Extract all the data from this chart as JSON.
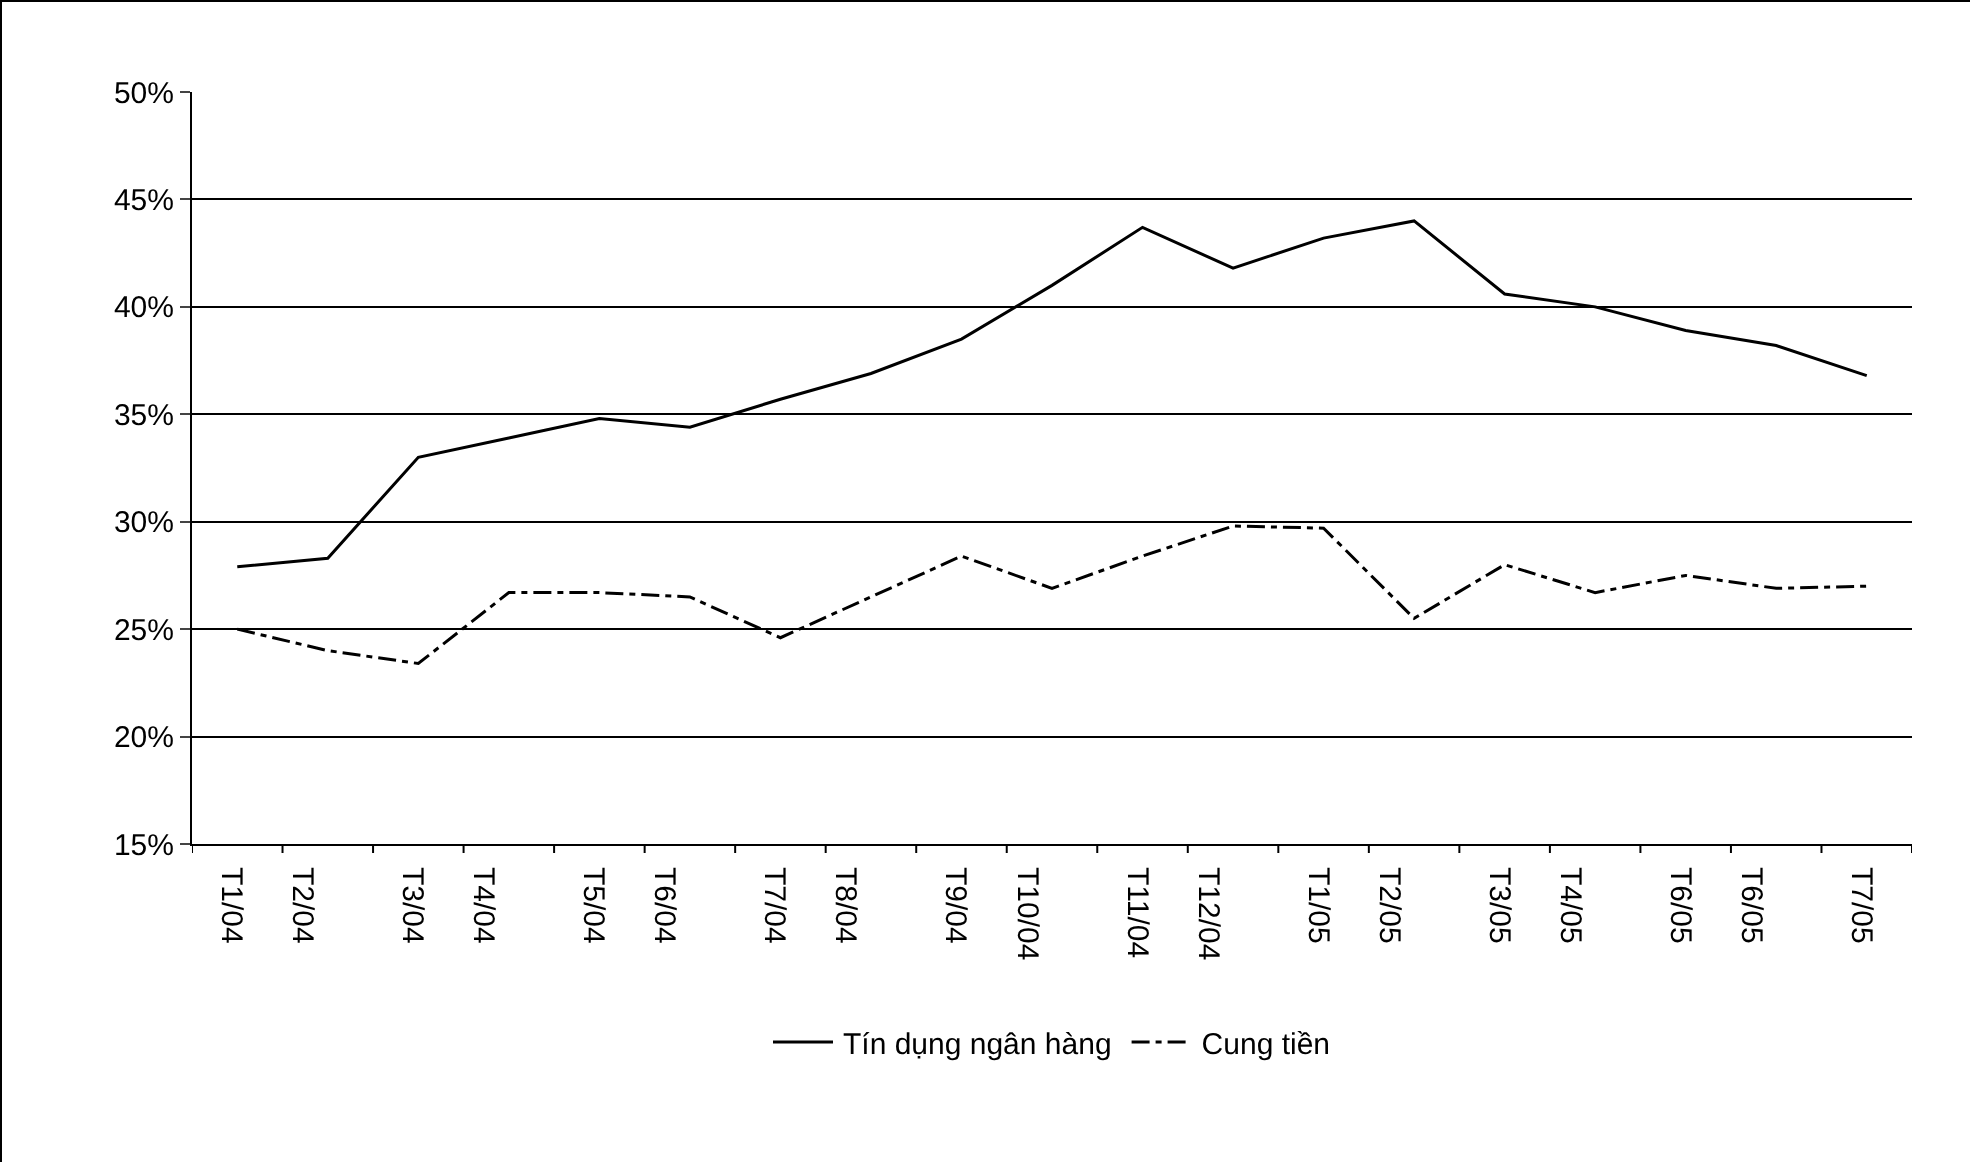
{
  "chart_data": {
    "type": "line",
    "categories": [
      "T1/04",
      "T2/04",
      "T3/04",
      "T4/04",
      "T5/04",
      "T6/04",
      "T7/04",
      "T8/04",
      "T9/04",
      "T10/04",
      "T11/04",
      "T12/04",
      "T1/05",
      "T2/05",
      "T3/05",
      "T4/05",
      "T6/05",
      "T6/05",
      "T7/05"
    ],
    "series": [
      {
        "name": "Tín dụng ngân hàng",
        "color": "#000000",
        "line_style": "solid",
        "values": [
          27.9,
          28.3,
          33.0,
          33.9,
          34.8,
          34.4,
          35.7,
          36.9,
          38.5,
          41.0,
          43.7,
          41.8,
          43.2,
          44.0,
          40.6,
          40.0,
          38.9,
          38.2,
          36.8
        ]
      },
      {
        "name": "Cung tiền",
        "color": "#000000",
        "line_style": "dashed",
        "values": [
          25.0,
          24.0,
          23.4,
          26.7,
          26.7,
          26.5,
          24.6,
          26.5,
          28.4,
          26.9,
          28.4,
          29.8,
          29.7,
          25.5,
          28.0,
          26.7,
          27.5,
          26.9,
          27.0
        ]
      }
    ],
    "ylim": [
      15,
      50
    ],
    "yticks": [
      {
        "value": 15,
        "label": "15%"
      },
      {
        "value": 20,
        "label": "20%"
      },
      {
        "value": 25,
        "label": "25%"
      },
      {
        "value": 30,
        "label": "30%"
      },
      {
        "value": 35,
        "label": "35%"
      },
      {
        "value": 40,
        "label": "40%"
      },
      {
        "value": 45,
        "label": "45%"
      },
      {
        "value": 50,
        "label": "50%"
      }
    ],
    "grid": "y",
    "legend": "bottom",
    "marker": "none"
  }
}
